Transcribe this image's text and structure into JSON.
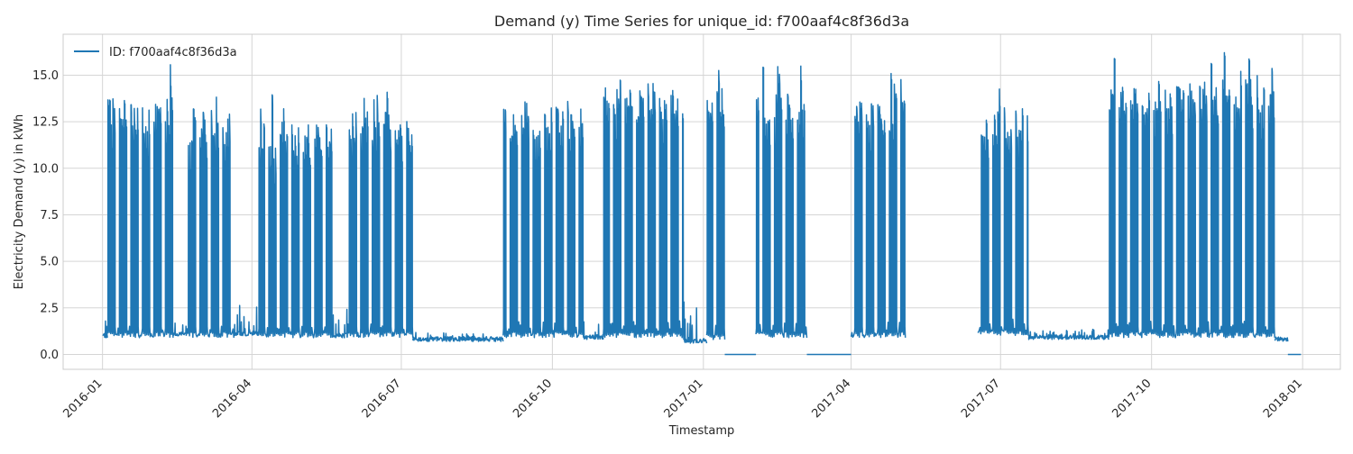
{
  "chart_data": {
    "type": "line",
    "title": "Demand (y) Time Series for unique_id: f700aaf4c8f36d3a",
    "xlabel": "Timestamp",
    "ylabel": "Electricity Demand (y) in kWh",
    "x_ticks": [
      "2016-01",
      "2016-04",
      "2016-07",
      "2016-10",
      "2017-01",
      "2017-04",
      "2017-07",
      "2017-10",
      "2018-01"
    ],
    "y_ticks": [
      "0.0",
      "2.5",
      "5.0",
      "7.5",
      "10.0",
      "12.5",
      "15.0"
    ],
    "xlim": [
      "2015-12-08",
      "2018-01-24"
    ],
    "ylim": [
      -0.8,
      17.2
    ],
    "grid": true,
    "legend_position": "top-left",
    "series": [
      {
        "name": "ID: f700aaf4c8f36d3a",
        "color": "#1f77b4",
        "periods": [
          {
            "start": "2016-01-01",
            "end": "2016-01-04",
            "kind": "flat",
            "base": 0.9,
            "peak": 1.8
          },
          {
            "start": "2016-01-04",
            "end": "2016-02-13",
            "kind": "busy",
            "base": 0.9,
            "peak": 13.8,
            "peak_max": 16.0
          },
          {
            "start": "2016-02-13",
            "end": "2016-02-21",
            "kind": "flat",
            "base": 1.0,
            "peak": 1.8
          },
          {
            "start": "2016-02-21",
            "end": "2016-03-21",
            "kind": "busy",
            "base": 0.9,
            "peak": 13.2,
            "peak_max": 14.4
          },
          {
            "start": "2016-03-21",
            "end": "2016-04-05",
            "kind": "flat",
            "base": 1.0,
            "peak": 2.7
          },
          {
            "start": "2016-04-05",
            "end": "2016-05-20",
            "kind": "busy",
            "base": 0.9,
            "peak": 12.4,
            "peak_max": 14.0
          },
          {
            "start": "2016-05-20",
            "end": "2016-05-29",
            "kind": "flat",
            "base": 0.9,
            "peak": 2.5
          },
          {
            "start": "2016-05-29",
            "end": "2016-07-08",
            "kind": "busy",
            "base": 0.9,
            "peak": 13.2,
            "peak_max": 14.4
          },
          {
            "start": "2016-07-08",
            "end": "2016-09-01",
            "kind": "flat",
            "base": 0.7,
            "peak": 1.2
          },
          {
            "start": "2016-09-01",
            "end": "2016-10-20",
            "kind": "busy",
            "base": 0.9,
            "peak": 13.5,
            "peak_max": 14.6
          },
          {
            "start": "2016-10-20",
            "end": "2016-11-01",
            "kind": "flat",
            "base": 0.8,
            "peak": 1.8
          },
          {
            "start": "2016-11-01",
            "end": "2016-12-20",
            "kind": "busy",
            "base": 0.9,
            "peak": 14.6,
            "peak_max": 16.2
          },
          {
            "start": "2016-12-20",
            "end": "2017-01-03",
            "kind": "flat",
            "base": 0.6,
            "peak": 3.2
          },
          {
            "start": "2017-01-03",
            "end": "2017-01-14",
            "kind": "busy",
            "base": 0.8,
            "peak": 14.5,
            "peak_max": 15.8
          },
          {
            "start": "2017-01-14",
            "end": "2017-02-02",
            "kind": "zero",
            "base": 0.0,
            "peak": 0.0
          },
          {
            "start": "2017-02-02",
            "end": "2017-03-05",
            "kind": "busy",
            "base": 0.9,
            "peak": 14.0,
            "peak_max": 15.8
          },
          {
            "start": "2017-03-05",
            "end": "2017-04-01",
            "kind": "zero",
            "base": 0.0,
            "peak": 0.0
          },
          {
            "start": "2017-04-01",
            "end": "2017-05-04",
            "kind": "busy",
            "base": 0.9,
            "peak": 14.0,
            "peak_max": 15.4
          },
          {
            "start": "2017-06-17",
            "end": "2017-07-18",
            "kind": "busy",
            "base": 1.0,
            "peak": 13.5,
            "peak_max": 14.9
          },
          {
            "start": "2017-07-18",
            "end": "2017-09-05",
            "kind": "flat",
            "base": 0.8,
            "peak": 1.4
          },
          {
            "start": "2017-09-05",
            "end": "2017-12-15",
            "kind": "busy",
            "base": 0.9,
            "peak": 14.8,
            "peak_max": 16.5
          },
          {
            "start": "2017-12-15",
            "end": "2017-12-23",
            "kind": "flat",
            "base": 0.7,
            "peak": 1.0
          },
          {
            "start": "2017-12-23",
            "end": "2017-12-31",
            "kind": "zero",
            "base": 0.0,
            "peak": 0.0
          }
        ]
      }
    ]
  }
}
